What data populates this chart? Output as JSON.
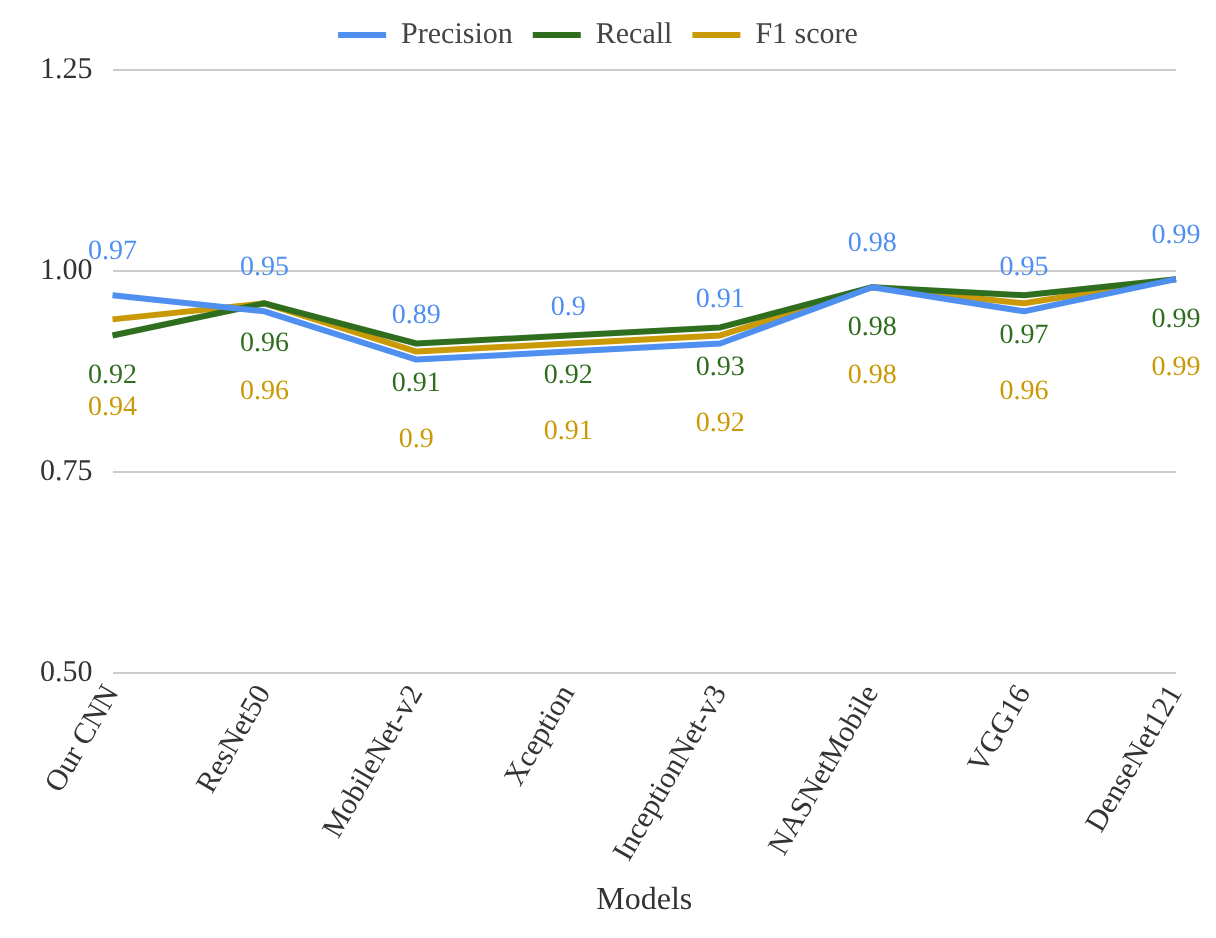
{
  "chart_data": {
    "type": "line",
    "xlabel": "Models",
    "categories": [
      "Our CNN",
      "ResNet50",
      "MobileNet-v2",
      "Xception",
      "InceptionNet-v3",
      "NASNetMobile",
      "VGG16",
      "DenseNet121"
    ],
    "series": [
      {
        "name": "Precision",
        "color": "#4f8ff0",
        "values": [
          0.97,
          0.95,
          0.89,
          0.9,
          0.91,
          0.98,
          0.95,
          0.99
        ]
      },
      {
        "name": "Recall",
        "color": "#2f6e1f",
        "values": [
          0.92,
          0.96,
          0.91,
          0.92,
          0.93,
          0.98,
          0.97,
          0.99
        ]
      },
      {
        "name": "F1 score",
        "color": "#c99a06",
        "values": [
          0.94,
          0.96,
          0.9,
          0.91,
          0.92,
          0.98,
          0.96,
          0.99
        ]
      }
    ],
    "ylim": [
      0.5,
      1.25
    ],
    "yticks": [
      {
        "value": 0.5,
        "label": "0.50"
      },
      {
        "value": 0.75,
        "label": "0.75"
      },
      {
        "value": 1,
        "label": "1.00"
      },
      {
        "value": 1.25,
        "label": "1.25"
      }
    ],
    "grid": "y",
    "legend": "top",
    "marker": "none",
    "line_style": "solid",
    "data_labels": true
  }
}
